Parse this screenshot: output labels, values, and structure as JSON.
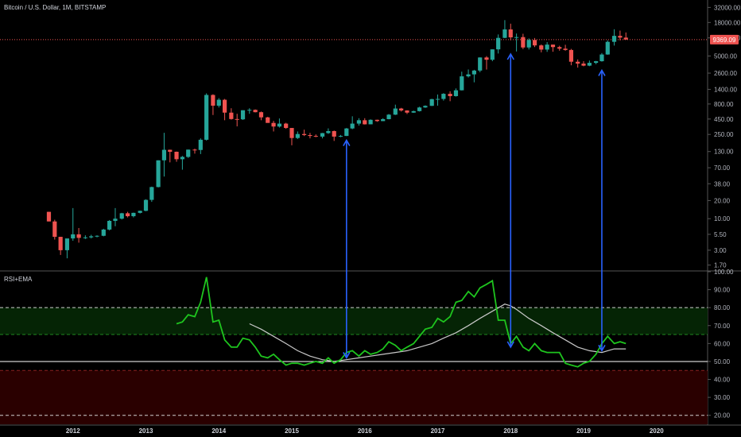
{
  "chart_data": [
    {
      "type": "candlestick",
      "title": "Bitcoin / U.S. Dollar, 1M, BITSTAMP",
      "yscale": "log",
      "ylim": [
        1.4,
        40000
      ],
      "y_ticks": [
        "32000.00",
        "18000.00",
        "10000.00",
        "5000.00",
        "2600.00",
        "1400.00",
        "800.00",
        "450.00",
        "250.00",
        "130.00",
        "70.00",
        "38.00",
        "20.00",
        "10.00",
        "5.50",
        "3.00",
        "1.70"
      ],
      "x_ticks": [
        "2012",
        "2013",
        "2014",
        "2015",
        "2016",
        "2017",
        "2018",
        "2019",
        "2020"
      ],
      "x_tick_years": [
        2012,
        2013,
        2014,
        2015,
        2016,
        2017,
        2018,
        2019,
        2020
      ],
      "x_range": [
        2011.0,
        2020.7
      ],
      "last_price": "9369.09",
      "last_price_value": 9369.09,
      "colors": {
        "up": "#26a69a",
        "down": "#ef5350",
        "price_line": "#ef5350"
      },
      "candles": [
        [
          2011.67,
          13,
          13,
          9,
          9
        ],
        [
          2011.75,
          9,
          9.6,
          4.5,
          5
        ],
        [
          2011.83,
          5,
          5,
          2.5,
          3
        ],
        [
          2011.92,
          3,
          4.5,
          2.2,
          4.7
        ],
        [
          2012.0,
          4.7,
          15,
          4.3,
          5.5
        ],
        [
          2012.08,
          5.5,
          7,
          4,
          4.8
        ],
        [
          2012.17,
          4.8,
          5.3,
          4.6,
          4.9
        ],
        [
          2012.25,
          4.9,
          5.4,
          4.7,
          5.1
        ],
        [
          2012.33,
          5.1,
          5.3,
          4.9,
          5.2
        ],
        [
          2012.42,
          5.2,
          6.8,
          5.1,
          6.6
        ],
        [
          2012.5,
          6.6,
          9.5,
          6.4,
          9.2
        ],
        [
          2012.58,
          9.2,
          15,
          7.5,
          10
        ],
        [
          2012.67,
          10,
          12.5,
          9.7,
          12.3
        ],
        [
          2012.75,
          12.3,
          13,
          10.5,
          11
        ],
        [
          2012.83,
          11,
          12.6,
          10.5,
          12.5
        ],
        [
          2012.92,
          12.5,
          13.6,
          12.2,
          13.5
        ],
        [
          2013.0,
          13.5,
          21,
          13.3,
          20.5
        ],
        [
          2013.08,
          20.5,
          34,
          19,
          33.5
        ],
        [
          2013.17,
          33.5,
          93,
          33,
          93
        ],
        [
          2013.25,
          93,
          266,
          50,
          139
        ],
        [
          2013.33,
          139,
          140,
          86,
          129
        ],
        [
          2013.42,
          129,
          130,
          88,
          97
        ],
        [
          2013.5,
          97,
          110,
          65,
          106
        ],
        [
          2013.58,
          106,
          140,
          102,
          140
        ],
        [
          2013.67,
          140,
          145,
          120,
          138
        ],
        [
          2013.75,
          138,
          215,
          118,
          204
        ],
        [
          2013.83,
          204,
          1200,
          198,
          1130
        ],
        [
          2013.92,
          1130,
          1160,
          525,
          750
        ],
        [
          2014.0,
          750,
          1000,
          700,
          940
        ],
        [
          2014.08,
          940,
          970,
          430,
          575
        ],
        [
          2014.17,
          575,
          680,
          440,
          450
        ],
        [
          2014.25,
          450,
          550,
          340,
          445
        ],
        [
          2014.33,
          445,
          630,
          435,
          630
        ],
        [
          2014.42,
          630,
          680,
          550,
          640
        ],
        [
          2014.5,
          640,
          650,
          580,
          585
        ],
        [
          2014.58,
          585,
          600,
          430,
          480
        ],
        [
          2014.67,
          480,
          490,
          390,
          388
        ],
        [
          2014.75,
          388,
          420,
          280,
          338
        ],
        [
          2014.83,
          338,
          460,
          325,
          378
        ],
        [
          2014.92,
          378,
          390,
          310,
          320
        ],
        [
          2015.0,
          320,
          320,
          165,
          218
        ],
        [
          2015.08,
          218,
          280,
          210,
          254
        ],
        [
          2015.17,
          254,
          300,
          235,
          244
        ],
        [
          2015.25,
          244,
          265,
          215,
          236
        ],
        [
          2015.33,
          236,
          250,
          225,
          230
        ],
        [
          2015.42,
          230,
          265,
          215,
          263
        ],
        [
          2015.5,
          263,
          315,
          255,
          284
        ],
        [
          2015.58,
          284,
          290,
          195,
          230
        ],
        [
          2015.67,
          230,
          245,
          225,
          236
        ],
        [
          2015.75,
          236,
          320,
          235,
          314
        ],
        [
          2015.83,
          314,
          500,
          305,
          378
        ],
        [
          2015.92,
          378,
          465,
          350,
          430
        ],
        [
          2016.0,
          430,
          465,
          365,
          368
        ],
        [
          2016.08,
          368,
          445,
          370,
          437
        ],
        [
          2016.17,
          437,
          440,
          405,
          416
        ],
        [
          2016.25,
          416,
          465,
          415,
          448
        ],
        [
          2016.33,
          448,
          545,
          445,
          532
        ],
        [
          2016.42,
          532,
          780,
          525,
          673
        ],
        [
          2016.5,
          673,
          690,
          600,
          624
        ],
        [
          2016.58,
          624,
          630,
          545,
          575
        ],
        [
          2016.67,
          575,
          620,
          570,
          609
        ],
        [
          2016.75,
          609,
          720,
          600,
          700
        ],
        [
          2016.83,
          700,
          760,
          690,
          745
        ],
        [
          2016.92,
          745,
          975,
          740,
          963
        ],
        [
          2017.0,
          963,
          1150,
          750,
          970
        ],
        [
          2017.08,
          970,
          1210,
          910,
          1180
        ],
        [
          2017.17,
          1180,
          1300,
          890,
          1080
        ],
        [
          2017.25,
          1080,
          1450,
          1060,
          1350
        ],
        [
          2017.33,
          1350,
          2750,
          1340,
          2300
        ],
        [
          2017.42,
          2300,
          2990,
          2200,
          2480
        ],
        [
          2017.5,
          2480,
          2950,
          1830,
          2870
        ],
        [
          2017.58,
          2870,
          4750,
          2690,
          4730
        ],
        [
          2017.67,
          4730,
          4980,
          2980,
          4340
        ],
        [
          2017.75,
          4340,
          6470,
          4100,
          6450
        ],
        [
          2017.83,
          6450,
          11400,
          5500,
          10000
        ],
        [
          2017.92,
          10000,
          19700,
          9900,
          13800
        ],
        [
          2018.0,
          13800,
          17200,
          9100,
          10200
        ],
        [
          2018.08,
          10200,
          11800,
          5950,
          10300
        ],
        [
          2018.17,
          10300,
          11700,
          6500,
          6930
        ],
        [
          2018.25,
          6930,
          9800,
          6420,
          9240
        ],
        [
          2018.33,
          9240,
          9950,
          7040,
          7500
        ],
        [
          2018.42,
          7500,
          7780,
          5750,
          6390
        ],
        [
          2018.5,
          6390,
          8500,
          5860,
          7730
        ],
        [
          2018.58,
          7730,
          7760,
          5880,
          7030
        ],
        [
          2018.67,
          7030,
          7400,
          6120,
          6620
        ],
        [
          2018.75,
          6620,
          7680,
          6120,
          6300
        ],
        [
          2018.83,
          6300,
          6560,
          3510,
          4020
        ],
        [
          2018.92,
          4020,
          4390,
          3210,
          3740
        ],
        [
          2019.0,
          3740,
          4100,
          3380,
          3460
        ],
        [
          2019.08,
          3460,
          4210,
          3390,
          3850
        ],
        [
          2019.17,
          3850,
          4150,
          3660,
          4100
        ],
        [
          2019.25,
          4100,
          5600,
          4030,
          5300
        ],
        [
          2019.33,
          5300,
          9100,
          5250,
          8600
        ],
        [
          2019.42,
          8600,
          13900,
          7450,
          10800
        ],
        [
          2019.5,
          10800,
          13200,
          9100,
          10100
        ],
        [
          2019.58,
          10100,
          12300,
          9400,
          9369
        ]
      ]
    },
    {
      "type": "line",
      "title": "RSI+EMA",
      "ylim": [
        15,
        100
      ],
      "y_ticks": [
        "100.00",
        "90.00",
        "80.00",
        "70.00",
        "60.00",
        "50.00",
        "40.00",
        "30.00",
        "20.00"
      ],
      "x_range": [
        2011.0,
        2020.7
      ],
      "levels": {
        "overbought": 80,
        "upper_mid": 65,
        "mid": 50,
        "oversold": 20,
        "lower_band": 45
      },
      "colors": {
        "rsi": "#1ec41e",
        "ema": "#c8c8c8",
        "mid": "#ffffff",
        "zone_green": "#052405",
        "zone_red": "#2a0000"
      },
      "series": [
        {
          "x": [
            2013.42,
            2013.5,
            2013.58,
            2013.67,
            2013.75,
            2013.83,
            2013.92,
            2014.0,
            2014.08,
            2014.17,
            2014.25,
            2014.33,
            2014.42,
            2014.5,
            2014.58,
            2014.67,
            2014.75,
            2014.83,
            2014.92,
            2015.0,
            2015.08,
            2015.17,
            2015.25,
            2015.33,
            2015.42,
            2015.5,
            2015.58,
            2015.67,
            2015.75,
            2015.83,
            2015.92,
            2016.0,
            2016.08,
            2016.17,
            2016.25,
            2016.33,
            2016.42,
            2016.5,
            2016.58,
            2016.67,
            2016.75,
            2016.83,
            2016.92,
            2017.0,
            2017.08,
            2017.17,
            2017.25,
            2017.33,
            2017.42,
            2017.5,
            2017.58,
            2017.67,
            2017.75,
            2017.83,
            2017.92,
            2018.0,
            2018.08,
            2018.17,
            2018.25,
            2018.33,
            2018.42,
            2018.5,
            2018.58,
            2018.67,
            2018.75,
            2018.83,
            2018.92,
            2019.0,
            2019.08,
            2019.17,
            2019.25,
            2019.33,
            2019.42,
            2019.5,
            2019.58
          ],
          "values": [
            71,
            72,
            76,
            75,
            83,
            97,
            72,
            73,
            62,
            58,
            58,
            63,
            62,
            58,
            53,
            52,
            54,
            51,
            48,
            49,
            49,
            48,
            49,
            50,
            49,
            52,
            49,
            51,
            55,
            56,
            53,
            56,
            54,
            55,
            57,
            61,
            59,
            56,
            58,
            60,
            64,
            68,
            69,
            74,
            72,
            75,
            83,
            84,
            89,
            86,
            91,
            93,
            95,
            73,
            73,
            60,
            64,
            58,
            56,
            60,
            56,
            55,
            55,
            55,
            49,
            48,
            47,
            49,
            50,
            54,
            60,
            64,
            60,
            61,
            60
          ]
        },
        {
          "x": [
            2014.42,
            2014.58,
            2014.75,
            2014.92,
            2015.08,
            2015.25,
            2015.42,
            2015.58,
            2015.75,
            2015.92,
            2016.08,
            2016.25,
            2016.42,
            2016.58,
            2016.75,
            2016.92,
            2017.08,
            2017.25,
            2017.42,
            2017.58,
            2017.75,
            2017.92,
            2018.0,
            2018.08,
            2018.25,
            2018.42,
            2018.58,
            2018.75,
            2018.92,
            2019.08,
            2019.25,
            2019.42,
            2019.58
          ],
          "values": [
            71,
            68,
            64,
            60,
            56,
            53,
            51,
            50,
            51,
            52,
            53,
            54,
            55,
            56,
            58,
            60,
            63,
            66,
            70,
            74,
            78,
            82,
            81,
            79,
            74,
            70,
            66,
            62,
            58,
            56,
            55,
            57,
            57
          ]
        }
      ]
    }
  ],
  "arrows": [
    {
      "x": 2015.75,
      "price": 200,
      "rsi": 52
    },
    {
      "x": 2018.0,
      "price": 5400,
      "rsi": 58
    },
    {
      "x": 2019.25,
      "price": 2900,
      "rsi": 56
    }
  ]
}
